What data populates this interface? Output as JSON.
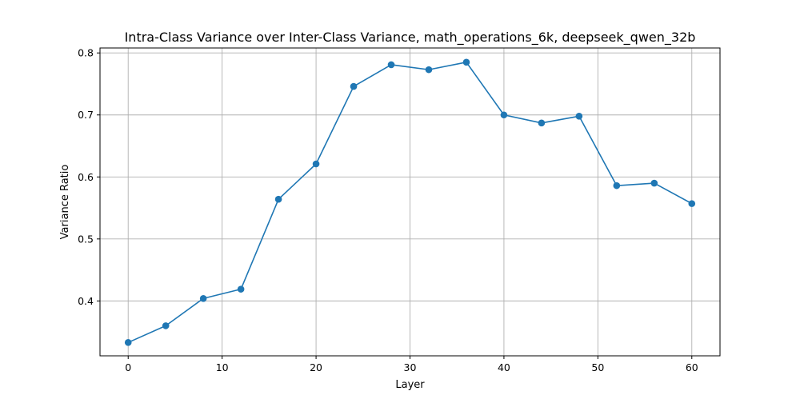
{
  "chart_data": {
    "type": "line",
    "title": "Intra-Class Variance over Inter-Class Variance, math_operations_6k, deepseek_qwen_32b",
    "xlabel": "Layer",
    "ylabel": "Variance Ratio",
    "xlim": [
      -3,
      63
    ],
    "ylim": [
      0.3115,
      0.808
    ],
    "xticks": [
      0,
      10,
      20,
      30,
      40,
      50,
      60
    ],
    "yticks": [
      0.4,
      0.5,
      0.6,
      0.7,
      0.8
    ],
    "xtick_labels": [
      "0",
      "10",
      "20",
      "30",
      "40",
      "50",
      "60"
    ],
    "ytick_labels": [
      "0.4",
      "0.5",
      "0.6",
      "0.7",
      "0.8"
    ],
    "grid": true,
    "line_color": "#1f77b4",
    "marker": "circle",
    "series": [
      {
        "x": [
          0,
          4,
          8,
          12,
          16,
          20,
          24,
          28,
          32,
          36,
          40,
          44,
          48,
          52,
          56,
          60
        ],
        "values": [
          0.333,
          0.36,
          0.404,
          0.419,
          0.564,
          0.621,
          0.746,
          0.781,
          0.773,
          0.785,
          0.7,
          0.687,
          0.698,
          0.586,
          0.59,
          0.557
        ]
      }
    ]
  }
}
